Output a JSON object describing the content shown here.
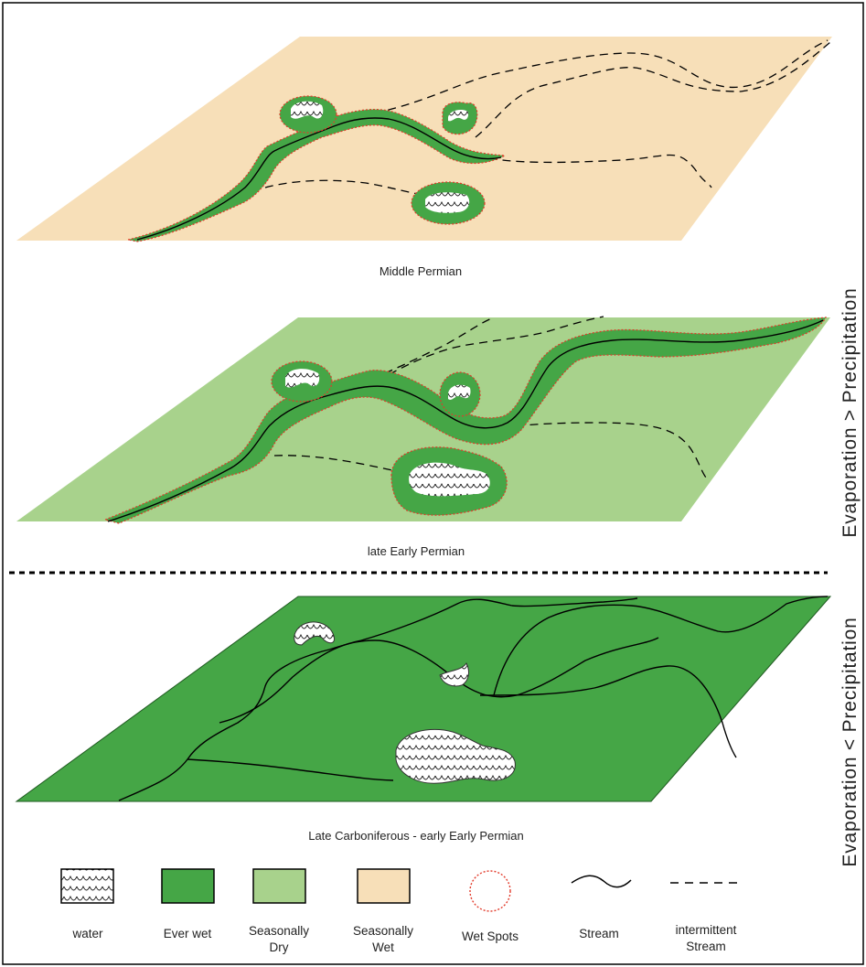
{
  "colors": {
    "ever_wet": "#45a646",
    "seasonally_dry": "#a8d28c",
    "seasonally_wet": "#f7dfb8",
    "wet_spot_outline": "#e23a2a",
    "stream": "#000000",
    "water": "#ffffff"
  },
  "panels": {
    "middle_permian": {
      "caption": "Middle Permian"
    },
    "late_early_permian": {
      "caption": "late Early Permian"
    },
    "late_carboniferous": {
      "caption": "Late Carboniferous - early Early Permian"
    }
  },
  "side_labels": {
    "upper": "Evaporation > Precipitation",
    "lower": "Evaporation < Precipitation"
  },
  "legend": {
    "water": "water",
    "ever_wet": "Ever wet",
    "seasonally_dry": [
      "Seasonally",
      "Dry"
    ],
    "seasonally_wet": [
      "Seasonally",
      "Wet"
    ],
    "wet_spots": "Wet Spots",
    "stream": "Stream",
    "intermittent_stream": [
      "intermittent",
      "Stream"
    ]
  }
}
